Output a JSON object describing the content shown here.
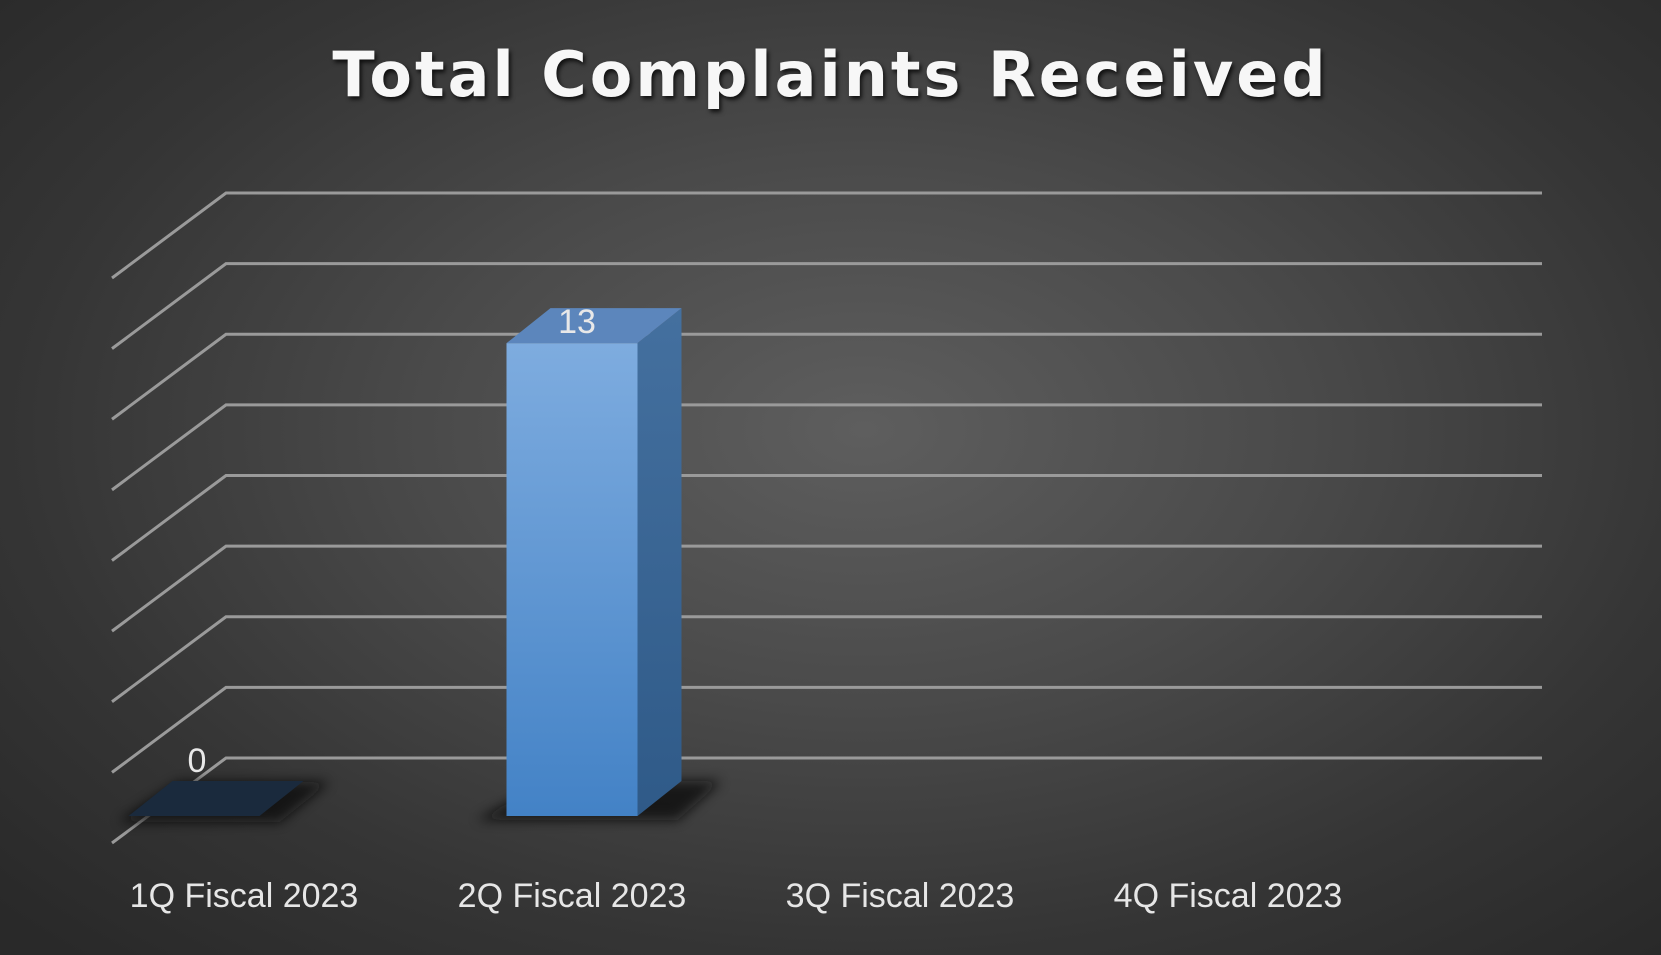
{
  "chart_data": {
    "type": "bar",
    "title": "Total Complaints Received",
    "categories": [
      "1Q Fiscal 2023",
      "2Q Fiscal 2023",
      "3Q Fiscal 2023",
      "4Q Fiscal 2023"
    ],
    "series": [
      {
        "values": [
          0,
          13,
          null,
          null
        ],
        "data_labels": [
          "0",
          "13",
          "",
          ""
        ]
      }
    ],
    "ylim": [
      0,
      16
    ],
    "grid": true,
    "three_d": true,
    "colors": {
      "bar_front_top": "#7eacdf",
      "bar_front_bottom": "#4382c6",
      "bar_side": "#365f8e",
      "bar_top": "#5c86bc",
      "zero_bar": "#1a2a3d",
      "gridline": "#9a9a9a",
      "background": "#4a4a4a"
    }
  }
}
